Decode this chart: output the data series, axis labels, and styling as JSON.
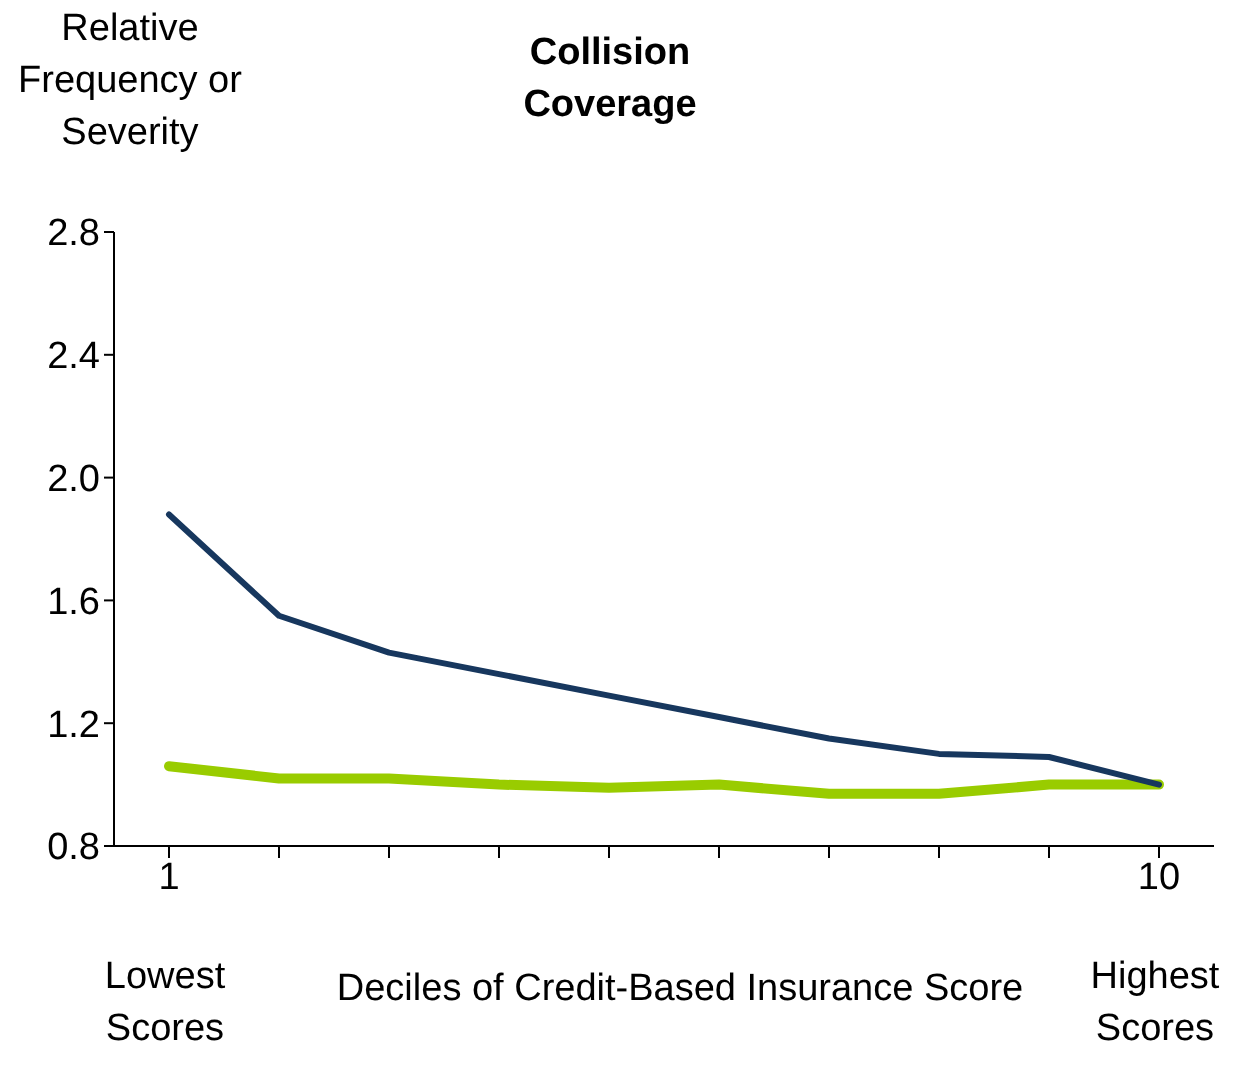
{
  "chart_data": {
    "type": "line",
    "title": "Collision Coverage",
    "ylabel": "Relative Frequency or Severity",
    "xlabel": "Deciles of Credit-Based Insurance Score",
    "categories": [
      "1",
      null,
      null,
      null,
      null,
      null,
      null,
      null,
      null,
      "10"
    ],
    "series": [
      {
        "color": "#17375e",
        "values": [
          1.88,
          1.55,
          1.43,
          1.36,
          1.29,
          1.22,
          1.15,
          1.1,
          1.09,
          1.0
        ]
      },
      {
        "color": "#99cc00",
        "values": [
          1.06,
          1.02,
          1.02,
          1.0,
          0.99,
          1.0,
          0.97,
          0.97,
          1.0,
          1.0
        ]
      }
    ],
    "ylim": [
      0.8,
      2.8
    ],
    "yticks": [
      {
        "value": 0.8,
        "label": "0.8"
      },
      {
        "value": 1.2,
        "label": "1.2"
      },
      {
        "value": 1.6,
        "label": "1.6"
      },
      {
        "value": 2.0,
        "label": "2.0"
      },
      {
        "value": 2.4,
        "label": "2.4"
      },
      {
        "value": 2.8,
        "label": "2.8"
      }
    ],
    "annotations": [
      "Lowest Scores",
      "Highest Scores"
    ],
    "grid": false,
    "legend": false,
    "marker": "none",
    "line_style": "solid"
  }
}
